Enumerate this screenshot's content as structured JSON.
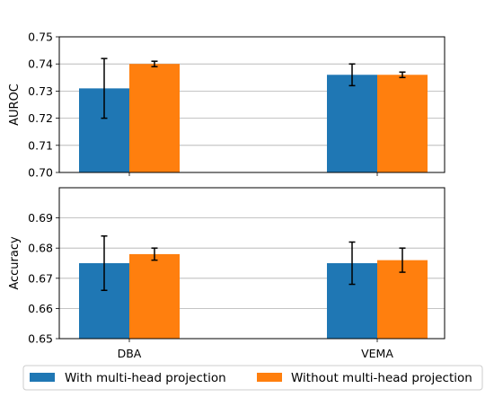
{
  "chart_data": [
    {
      "type": "bar",
      "title": "",
      "xlabel": "",
      "ylabel": "AUROC",
      "categories": [
        "DBA",
        "VEMA"
      ],
      "ylim": [
        0.7,
        0.75
      ],
      "yticks": [
        0.7,
        0.71,
        0.72,
        0.73,
        0.74,
        0.75
      ],
      "ytick_labels": [
        "0.70",
        "0.71",
        "0.72",
        "0.73",
        "0.74",
        "0.75"
      ],
      "grid": "horizontal",
      "show_xtick_labels": false,
      "series": [
        {
          "name": "With multi-head projection",
          "color": "#1f77b4",
          "values": [
            0.731,
            0.736
          ],
          "errors": [
            0.011,
            0.004
          ]
        },
        {
          "name": "Without multi-head projection",
          "color": "#ff7f0e",
          "values": [
            0.74,
            0.736
          ],
          "errors": [
            0.001,
            0.001
          ]
        }
      ]
    },
    {
      "type": "bar",
      "title": "",
      "xlabel": "",
      "ylabel": "Accuracy",
      "categories": [
        "DBA",
        "VEMA"
      ],
      "ylim": [
        0.65,
        0.7
      ],
      "yticks": [
        0.65,
        0.66,
        0.67,
        0.68,
        0.69
      ],
      "ytick_labels": [
        "0.65",
        "0.66",
        "0.67",
        "0.68",
        "0.69"
      ],
      "grid": "horizontal",
      "show_xtick_labels": true,
      "series": [
        {
          "name": "With multi-head projection",
          "color": "#1f77b4",
          "values": [
            0.675,
            0.675
          ],
          "errors": [
            0.009,
            0.007
          ]
        },
        {
          "name": "Without multi-head projection",
          "color": "#ff7f0e",
          "values": [
            0.678,
            0.676
          ],
          "errors": [
            0.002,
            0.004
          ]
        }
      ]
    }
  ],
  "legend": {
    "placement": "bottom",
    "items": [
      {
        "label": "With multi-head projection",
        "color": "#1f77b4"
      },
      {
        "label": "Without multi-head projection",
        "color": "#ff7f0e"
      }
    ]
  }
}
